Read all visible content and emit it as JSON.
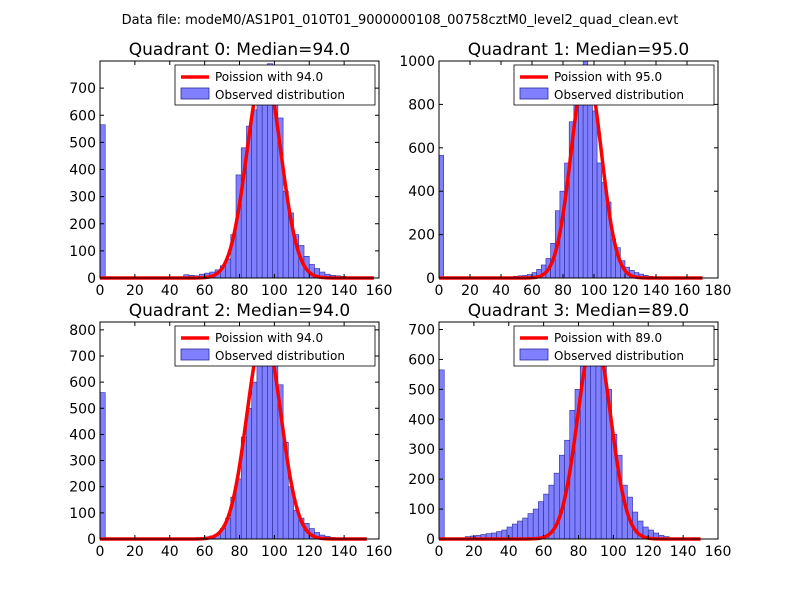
{
  "figure_title": "Data file: modeM0/AS1P01_010T01_9000000108_00758cztM0_level2_quad_clean.evt",
  "colors": {
    "bars_fill": "#8080ff",
    "bars_edge": "#2a2a9a",
    "fit_line": "#ff0000",
    "axes": "#000000",
    "background": "#ffffff"
  },
  "chart_data": [
    {
      "type": "bar",
      "title": "Quadrant 0: Median=94.0",
      "median": 94.0,
      "bin_width": 3,
      "xlim": [
        0,
        160
      ],
      "ylim": [
        0,
        800
      ],
      "xticks": [
        "0",
        "20",
        "40",
        "60",
        "80",
        "100",
        "120",
        "140",
        "160"
      ],
      "yticks": [
        "0",
        "100",
        "200",
        "300",
        "400",
        "500",
        "600",
        "700"
      ],
      "xtick_values": [
        0,
        20,
        40,
        60,
        80,
        100,
        120,
        140,
        160
      ],
      "ytick_values": [
        0,
        100,
        200,
        300,
        400,
        500,
        600,
        700
      ],
      "legend": {
        "line_label": "Poission with 94.0",
        "bar_label": "Observed distribution",
        "placement": "top-right"
      },
      "bars": [
        {
          "x": 0,
          "count": 565
        },
        {
          "x": 48,
          "count": 12
        },
        {
          "x": 51,
          "count": 10
        },
        {
          "x": 54,
          "count": 8
        },
        {
          "x": 57,
          "count": 14
        },
        {
          "x": 60,
          "count": 18
        },
        {
          "x": 63,
          "count": 22
        },
        {
          "x": 66,
          "count": 30
        },
        {
          "x": 69,
          "count": 45
        },
        {
          "x": 72,
          "count": 70
        },
        {
          "x": 75,
          "count": 160
        },
        {
          "x": 78,
          "count": 380
        },
        {
          "x": 81,
          "count": 480
        },
        {
          "x": 84,
          "count": 560
        },
        {
          "x": 87,
          "count": 620
        },
        {
          "x": 90,
          "count": 690
        },
        {
          "x": 93,
          "count": 760
        },
        {
          "x": 96,
          "count": 790
        },
        {
          "x": 99,
          "count": 640
        },
        {
          "x": 102,
          "count": 590
        },
        {
          "x": 105,
          "count": 320
        },
        {
          "x": 108,
          "count": 240
        },
        {
          "x": 111,
          "count": 160
        },
        {
          "x": 114,
          "count": 120
        },
        {
          "x": 117,
          "count": 80
        },
        {
          "x": 120,
          "count": 50
        },
        {
          "x": 123,
          "count": 35
        },
        {
          "x": 126,
          "count": 22
        },
        {
          "x": 129,
          "count": 14
        },
        {
          "x": 132,
          "count": 10
        },
        {
          "x": 135,
          "count": 8
        },
        {
          "x": 138,
          "count": 6
        },
        {
          "x": 141,
          "count": 4
        }
      ],
      "fit": {
        "peak_x": 94,
        "peak_y": 770,
        "sigma": 9.7,
        "x_start": 0,
        "x_end": 157
      }
    },
    {
      "type": "bar",
      "title": "Quadrant 1: Median=95.0",
      "median": 95.0,
      "bin_width": 3,
      "xlim": [
        0,
        180
      ],
      "ylim": [
        0,
        1000
      ],
      "xticks": [
        "0",
        "20",
        "40",
        "60",
        "80",
        "100",
        "120",
        "140",
        "160",
        "180"
      ],
      "yticks": [
        "0",
        "200",
        "400",
        "600",
        "800",
        "1000"
      ],
      "xtick_values": [
        0,
        20,
        40,
        60,
        80,
        100,
        120,
        140,
        160,
        180
      ],
      "ytick_values": [
        0,
        200,
        400,
        600,
        800,
        1000
      ],
      "legend": {
        "line_label": "Poission with 95.0",
        "bar_label": "Observed distribution",
        "placement": "top-right"
      },
      "bars": [
        {
          "x": 0,
          "count": 565
        },
        {
          "x": 48,
          "count": 8
        },
        {
          "x": 51,
          "count": 10
        },
        {
          "x": 54,
          "count": 12
        },
        {
          "x": 57,
          "count": 16
        },
        {
          "x": 60,
          "count": 25
        },
        {
          "x": 63,
          "count": 40
        },
        {
          "x": 66,
          "count": 60
        },
        {
          "x": 69,
          "count": 90
        },
        {
          "x": 72,
          "count": 160
        },
        {
          "x": 75,
          "count": 310
        },
        {
          "x": 78,
          "count": 400
        },
        {
          "x": 81,
          "count": 530
        },
        {
          "x": 84,
          "count": 720
        },
        {
          "x": 87,
          "count": 860
        },
        {
          "x": 90,
          "count": 900
        },
        {
          "x": 93,
          "count": 1000
        },
        {
          "x": 96,
          "count": 900
        },
        {
          "x": 99,
          "count": 770
        },
        {
          "x": 102,
          "count": 530
        },
        {
          "x": 105,
          "count": 440
        },
        {
          "x": 108,
          "count": 350
        },
        {
          "x": 111,
          "count": 180
        },
        {
          "x": 114,
          "count": 140
        },
        {
          "x": 117,
          "count": 80
        },
        {
          "x": 120,
          "count": 50
        },
        {
          "x": 123,
          "count": 35
        },
        {
          "x": 126,
          "count": 25
        },
        {
          "x": 129,
          "count": 18
        },
        {
          "x": 132,
          "count": 12
        },
        {
          "x": 135,
          "count": 8
        }
      ],
      "fit": {
        "peak_x": 95,
        "peak_y": 965,
        "sigma": 9.7,
        "x_start": 0,
        "x_end": 170
      }
    },
    {
      "type": "bar",
      "title": "Quadrant 2: Median=94.0",
      "median": 94.0,
      "bin_width": 3,
      "xlim": [
        0,
        160
      ],
      "ylim": [
        0,
        830
      ],
      "xticks": [
        "0",
        "20",
        "40",
        "60",
        "80",
        "100",
        "120",
        "140",
        "160"
      ],
      "yticks": [
        "0",
        "100",
        "200",
        "300",
        "400",
        "500",
        "600",
        "700",
        "800"
      ],
      "xtick_values": [
        0,
        20,
        40,
        60,
        80,
        100,
        120,
        140,
        160
      ],
      "ytick_values": [
        0,
        100,
        200,
        300,
        400,
        500,
        600,
        700,
        800
      ],
      "legend": {
        "line_label": "Poission with 94.0",
        "bar_label": "Observed distribution",
        "placement": "top-right"
      },
      "bars": [
        {
          "x": 0,
          "count": 560
        },
        {
          "x": 60,
          "count": 8
        },
        {
          "x": 63,
          "count": 12
        },
        {
          "x": 66,
          "count": 18
        },
        {
          "x": 69,
          "count": 40
        },
        {
          "x": 72,
          "count": 80
        },
        {
          "x": 75,
          "count": 160
        },
        {
          "x": 78,
          "count": 230
        },
        {
          "x": 81,
          "count": 390
        },
        {
          "x": 84,
          "count": 500
        },
        {
          "x": 87,
          "count": 600
        },
        {
          "x": 90,
          "count": 690
        },
        {
          "x": 93,
          "count": 720
        },
        {
          "x": 96,
          "count": 740
        },
        {
          "x": 99,
          "count": 700
        },
        {
          "x": 102,
          "count": 590
        },
        {
          "x": 105,
          "count": 370
        },
        {
          "x": 108,
          "count": 200
        },
        {
          "x": 111,
          "count": 110
        },
        {
          "x": 114,
          "count": 80
        },
        {
          "x": 117,
          "count": 60
        },
        {
          "x": 120,
          "count": 40
        },
        {
          "x": 123,
          "count": 25
        },
        {
          "x": 126,
          "count": 15
        },
        {
          "x": 129,
          "count": 10
        },
        {
          "x": 132,
          "count": 6
        }
      ],
      "fit": {
        "peak_x": 94,
        "peak_y": 790,
        "sigma": 9.7,
        "x_start": 0,
        "x_end": 153
      }
    },
    {
      "type": "bar",
      "title": "Quadrant 3: Median=89.0",
      "median": 89.0,
      "bin_width": 3,
      "xlim": [
        0,
        160
      ],
      "ylim": [
        0,
        725
      ],
      "xticks": [
        "0",
        "20",
        "40",
        "60",
        "80",
        "100",
        "120",
        "140",
        "160"
      ],
      "yticks": [
        "0",
        "100",
        "200",
        "300",
        "400",
        "500",
        "600",
        "700"
      ],
      "xtick_values": [
        0,
        20,
        40,
        60,
        80,
        100,
        120,
        140,
        160
      ],
      "ytick_values": [
        0,
        100,
        200,
        300,
        400,
        500,
        600,
        700
      ],
      "legend": {
        "line_label": "Poission with 89.0",
        "bar_label": "Observed distribution",
        "placement": "top-right"
      },
      "bars": [
        {
          "x": 0,
          "count": 565
        },
        {
          "x": 15,
          "count": 8
        },
        {
          "x": 18,
          "count": 10
        },
        {
          "x": 21,
          "count": 12
        },
        {
          "x": 24,
          "count": 15
        },
        {
          "x": 27,
          "count": 18
        },
        {
          "x": 30,
          "count": 20
        },
        {
          "x": 33,
          "count": 25
        },
        {
          "x": 36,
          "count": 30
        },
        {
          "x": 39,
          "count": 40
        },
        {
          "x": 42,
          "count": 50
        },
        {
          "x": 45,
          "count": 60
        },
        {
          "x": 48,
          "count": 70
        },
        {
          "x": 51,
          "count": 85
        },
        {
          "x": 54,
          "count": 100
        },
        {
          "x": 57,
          "count": 125
        },
        {
          "x": 60,
          "count": 150
        },
        {
          "x": 63,
          "count": 180
        },
        {
          "x": 66,
          "count": 220
        },
        {
          "x": 69,
          "count": 280
        },
        {
          "x": 72,
          "count": 330
        },
        {
          "x": 75,
          "count": 430
        },
        {
          "x": 78,
          "count": 500
        },
        {
          "x": 81,
          "count": 600
        },
        {
          "x": 84,
          "count": 640
        },
        {
          "x": 87,
          "count": 690
        },
        {
          "x": 90,
          "count": 650
        },
        {
          "x": 93,
          "count": 580
        },
        {
          "x": 96,
          "count": 500
        },
        {
          "x": 99,
          "count": 350
        },
        {
          "x": 102,
          "count": 280
        },
        {
          "x": 105,
          "count": 180
        },
        {
          "x": 108,
          "count": 140
        },
        {
          "x": 111,
          "count": 90
        },
        {
          "x": 114,
          "count": 60
        },
        {
          "x": 117,
          "count": 40
        },
        {
          "x": 120,
          "count": 30
        },
        {
          "x": 123,
          "count": 20
        },
        {
          "x": 126,
          "count": 12
        },
        {
          "x": 129,
          "count": 8
        }
      ],
      "fit": {
        "peak_x": 89,
        "peak_y": 680,
        "sigma": 9.4,
        "x_start": 0,
        "x_end": 150
      }
    }
  ]
}
